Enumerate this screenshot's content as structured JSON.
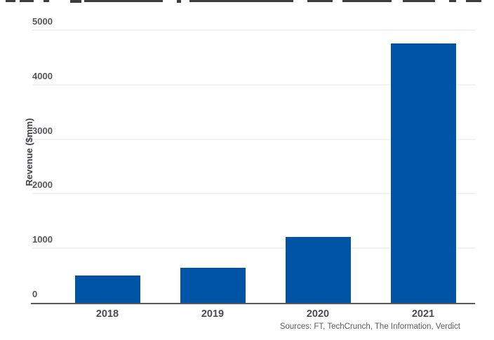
{
  "chart_data": {
    "type": "bar",
    "categories": [
      "2018",
      "2019",
      "2020",
      "2021"
    ],
    "values": [
      500,
      640,
      1210,
      4750
    ],
    "title": "",
    "xlabel": "",
    "ylabel": "Revenue ($mm)",
    "ylim": [
      0,
      5000
    ],
    "yticks": [
      0,
      1000,
      2000,
      3000,
      4000,
      5000
    ],
    "grid": true,
    "legend": false,
    "bar_color": "#0054a5",
    "gridline_color": "#f1f1f1",
    "axis_line_color": "#58595b",
    "source_note": "Sources: FT, TechCrunch, The Information, Verdict"
  }
}
